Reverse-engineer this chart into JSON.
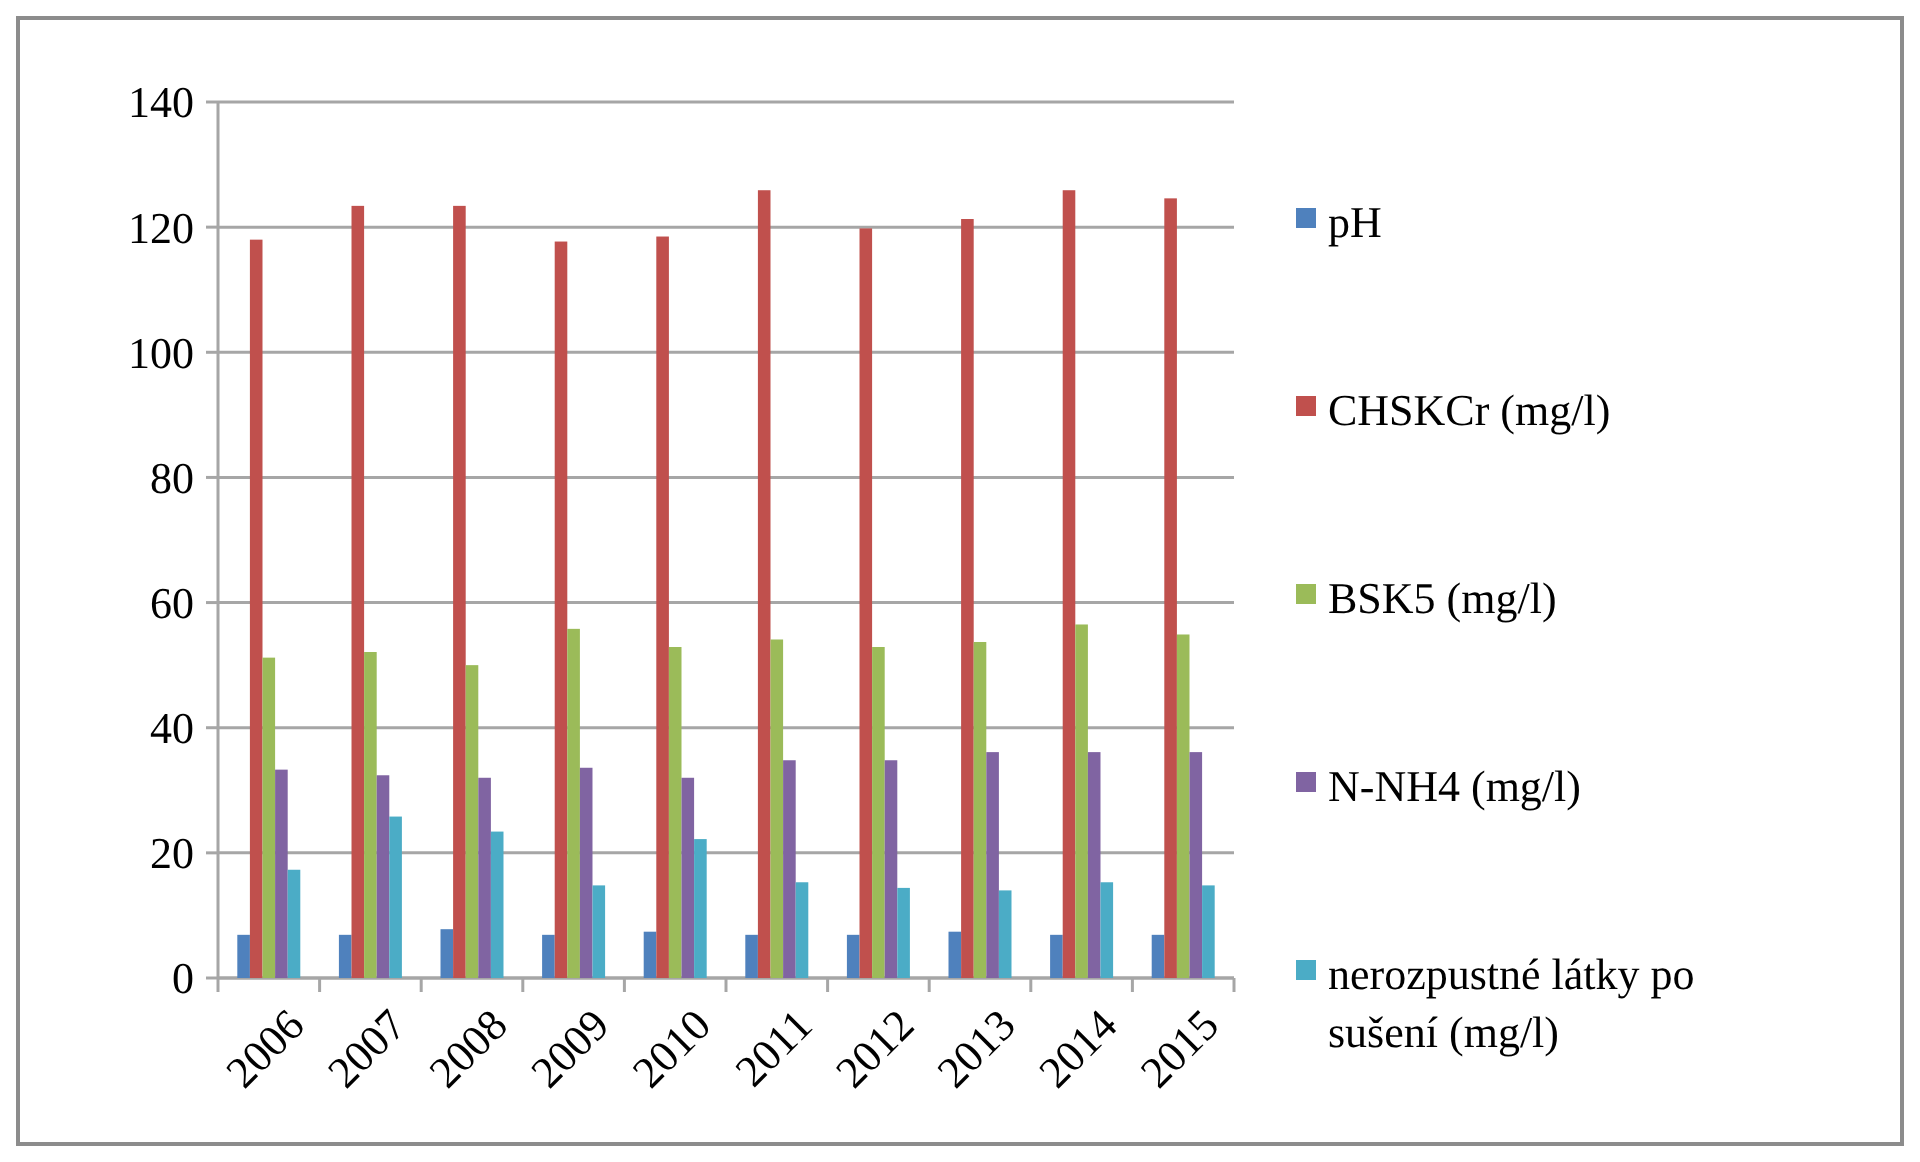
{
  "chart_data": {
    "type": "bar",
    "categories": [
      "2006",
      "2007",
      "2008",
      "2009",
      "2010",
      "2011",
      "2012",
      "2013",
      "2014",
      "2015"
    ],
    "series": [
      {
        "name": "pH",
        "color": "#4f81bd",
        "values": [
          6.9,
          6.9,
          7.8,
          6.9,
          7.4,
          6.9,
          6.9,
          7.4,
          6.9,
          6.9
        ]
      },
      {
        "name": "CHSKCr (mg/l)",
        "color": "#c0504d",
        "values": [
          118.0,
          123.4,
          123.4,
          117.7,
          118.5,
          125.9,
          119.8,
          121.3,
          125.9,
          124.6
        ]
      },
      {
        "name": "BSK5  (mg/l)",
        "color": "#9bbb59",
        "values": [
          51.2,
          52.1,
          50.0,
          55.8,
          52.9,
          54.1,
          52.9,
          53.7,
          56.5,
          54.9
        ]
      },
      {
        "name": "N-NH4  (mg/l)",
        "color": "#8064a2",
        "values": [
          33.3,
          32.4,
          32.0,
          33.6,
          32.0,
          34.8,
          34.8,
          36.1,
          36.1,
          36.1
        ]
      },
      {
        "name": "nerozpustné látky po sušení  (mg/l)",
        "color": "#4bacc6",
        "values": [
          17.3,
          25.8,
          23.4,
          14.8,
          22.2,
          15.3,
          14.4,
          14.0,
          15.3,
          14.8
        ]
      }
    ],
    "ylim": [
      0,
      140
    ],
    "yticks": [
      0,
      20,
      40,
      60,
      80,
      100,
      120,
      140
    ],
    "grid": "y",
    "legend": "right"
  }
}
